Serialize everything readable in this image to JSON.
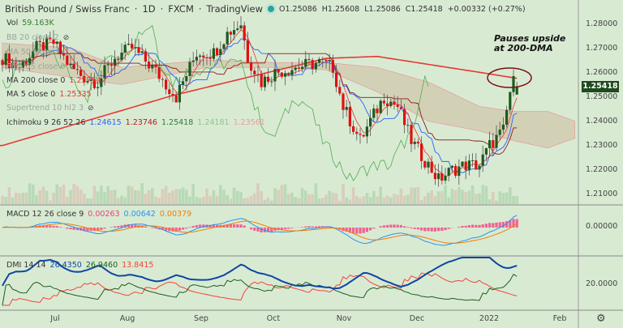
{
  "header": {
    "symbol": "British Pound / Swiss Franc",
    "interval": "1D",
    "exchange": "FXCM",
    "source": "TradingView",
    "open": "O1.25086",
    "high": "H1.25608",
    "low": "L1.25086",
    "close": "C1.25418",
    "change": "+0.00332 (+0.27%)"
  },
  "legend": {
    "vol": {
      "label": "Vol",
      "value": "59.163K"
    },
    "bb": {
      "label": "BB 20 close 2"
    },
    "ma50": {
      "label": "MA 50 close"
    },
    "ema55": {
      "label": "EMA 55 close 0"
    },
    "ma200": {
      "label": "MA 200 close 0",
      "value": "1.25754"
    },
    "ma5": {
      "label": "MA 5 close 0",
      "value": "1.25335"
    },
    "supertrend": {
      "label": "Supertrend 10 hl2 3"
    },
    "ichimoku": {
      "label": "Ichimoku 9 26 52 26",
      "v1": "1.24615",
      "v2": "1.23746",
      "v3": "1.25418",
      "v4": "1.24181",
      "v5": "1.23561"
    },
    "macd": {
      "label": "MACD 12 26 close 9",
      "hist": "0.00263",
      "macd": "0.00642",
      "signal": "0.00379"
    },
    "dmi": {
      "label": "DMI 14 14",
      "adx": "26.4350",
      "plus": "26.9460",
      "minus": "13.8415"
    }
  },
  "annotation": {
    "line1": "Pauses upside",
    "line2": "at 200-DMA"
  },
  "price_axis": [
    "1.28000",
    "1.27000",
    "1.26000",
    "1.25000",
    "1.24000",
    "1.23000",
    "1.22000",
    "1.21000"
  ],
  "macd_axis": [
    "0.00000"
  ],
  "dmi_axis": [
    "20.0000"
  ],
  "last_price": "1.25418",
  "time_axis": [
    "Jul",
    "Aug",
    "Sep",
    "Oct",
    "Nov",
    "Dec",
    "2022",
    "Feb"
  ],
  "colors": {
    "up": "#1e5a1e",
    "down": "#e01010",
    "ma200": "#e53935",
    "bg": "#d9ead3"
  },
  "chart_data": {
    "type": "candlestick",
    "title": "British Pound / Swiss Franc · 1D · FXCM",
    "ylim": [
      1.205,
      1.286
    ],
    "close_keypoints": [
      [
        0,
        1.266
      ],
      [
        5,
        1.262
      ],
      [
        10,
        1.27
      ],
      [
        15,
        1.272
      ],
      [
        20,
        1.262
      ],
      [
        24,
        1.258
      ],
      [
        28,
        1.256
      ],
      [
        33,
        1.266
      ],
      [
        38,
        1.27
      ],
      [
        44,
        1.262
      ],
      [
        51,
        1.25
      ],
      [
        57,
        1.268
      ],
      [
        62,
        1.268
      ],
      [
        66,
        1.276
      ],
      [
        70,
        1.28
      ],
      [
        72,
        1.266
      ],
      [
        76,
        1.256
      ],
      [
        80,
        1.26
      ],
      [
        86,
        1.262
      ],
      [
        93,
        1.264
      ],
      [
        97,
        1.262
      ],
      [
        100,
        1.246
      ],
      [
        105,
        1.232
      ],
      [
        108,
        1.24
      ],
      [
        112,
        1.25
      ],
      [
        116,
        1.246
      ],
      [
        120,
        1.232
      ],
      [
        124,
        1.224
      ],
      [
        128,
        1.216
      ],
      [
        132,
        1.22
      ],
      [
        136,
        1.222
      ],
      [
        140,
        1.222
      ],
      [
        143,
        1.23
      ],
      [
        147,
        1.236
      ],
      [
        149,
        1.252
      ],
      [
        150,
        1.256
      ],
      [
        151,
        1.25418
      ]
    ],
    "ma200_keypoints": [
      [
        0,
        1.23
      ],
      [
        50,
        1.2505
      ],
      [
        95,
        1.2657
      ],
      [
        110,
        1.2665
      ],
      [
        140,
        1.26
      ],
      [
        151,
        1.25754
      ]
    ],
    "cloud_keypoints": [
      [
        0,
        1.272,
        1.262
      ],
      [
        20,
        1.27,
        1.258
      ],
      [
        35,
        1.262,
        1.255
      ],
      [
        60,
        1.265,
        1.262
      ],
      [
        80,
        1.264,
        1.262
      ],
      [
        95,
        1.264,
        1.261
      ],
      [
        110,
        1.262,
        1.252
      ],
      [
        125,
        1.256,
        1.24
      ],
      [
        140,
        1.246,
        1.236
      ],
      [
        150,
        1.244,
        1.232
      ],
      [
        160,
        1.244,
        1.229
      ],
      [
        168,
        1.24,
        1.233
      ]
    ]
  }
}
